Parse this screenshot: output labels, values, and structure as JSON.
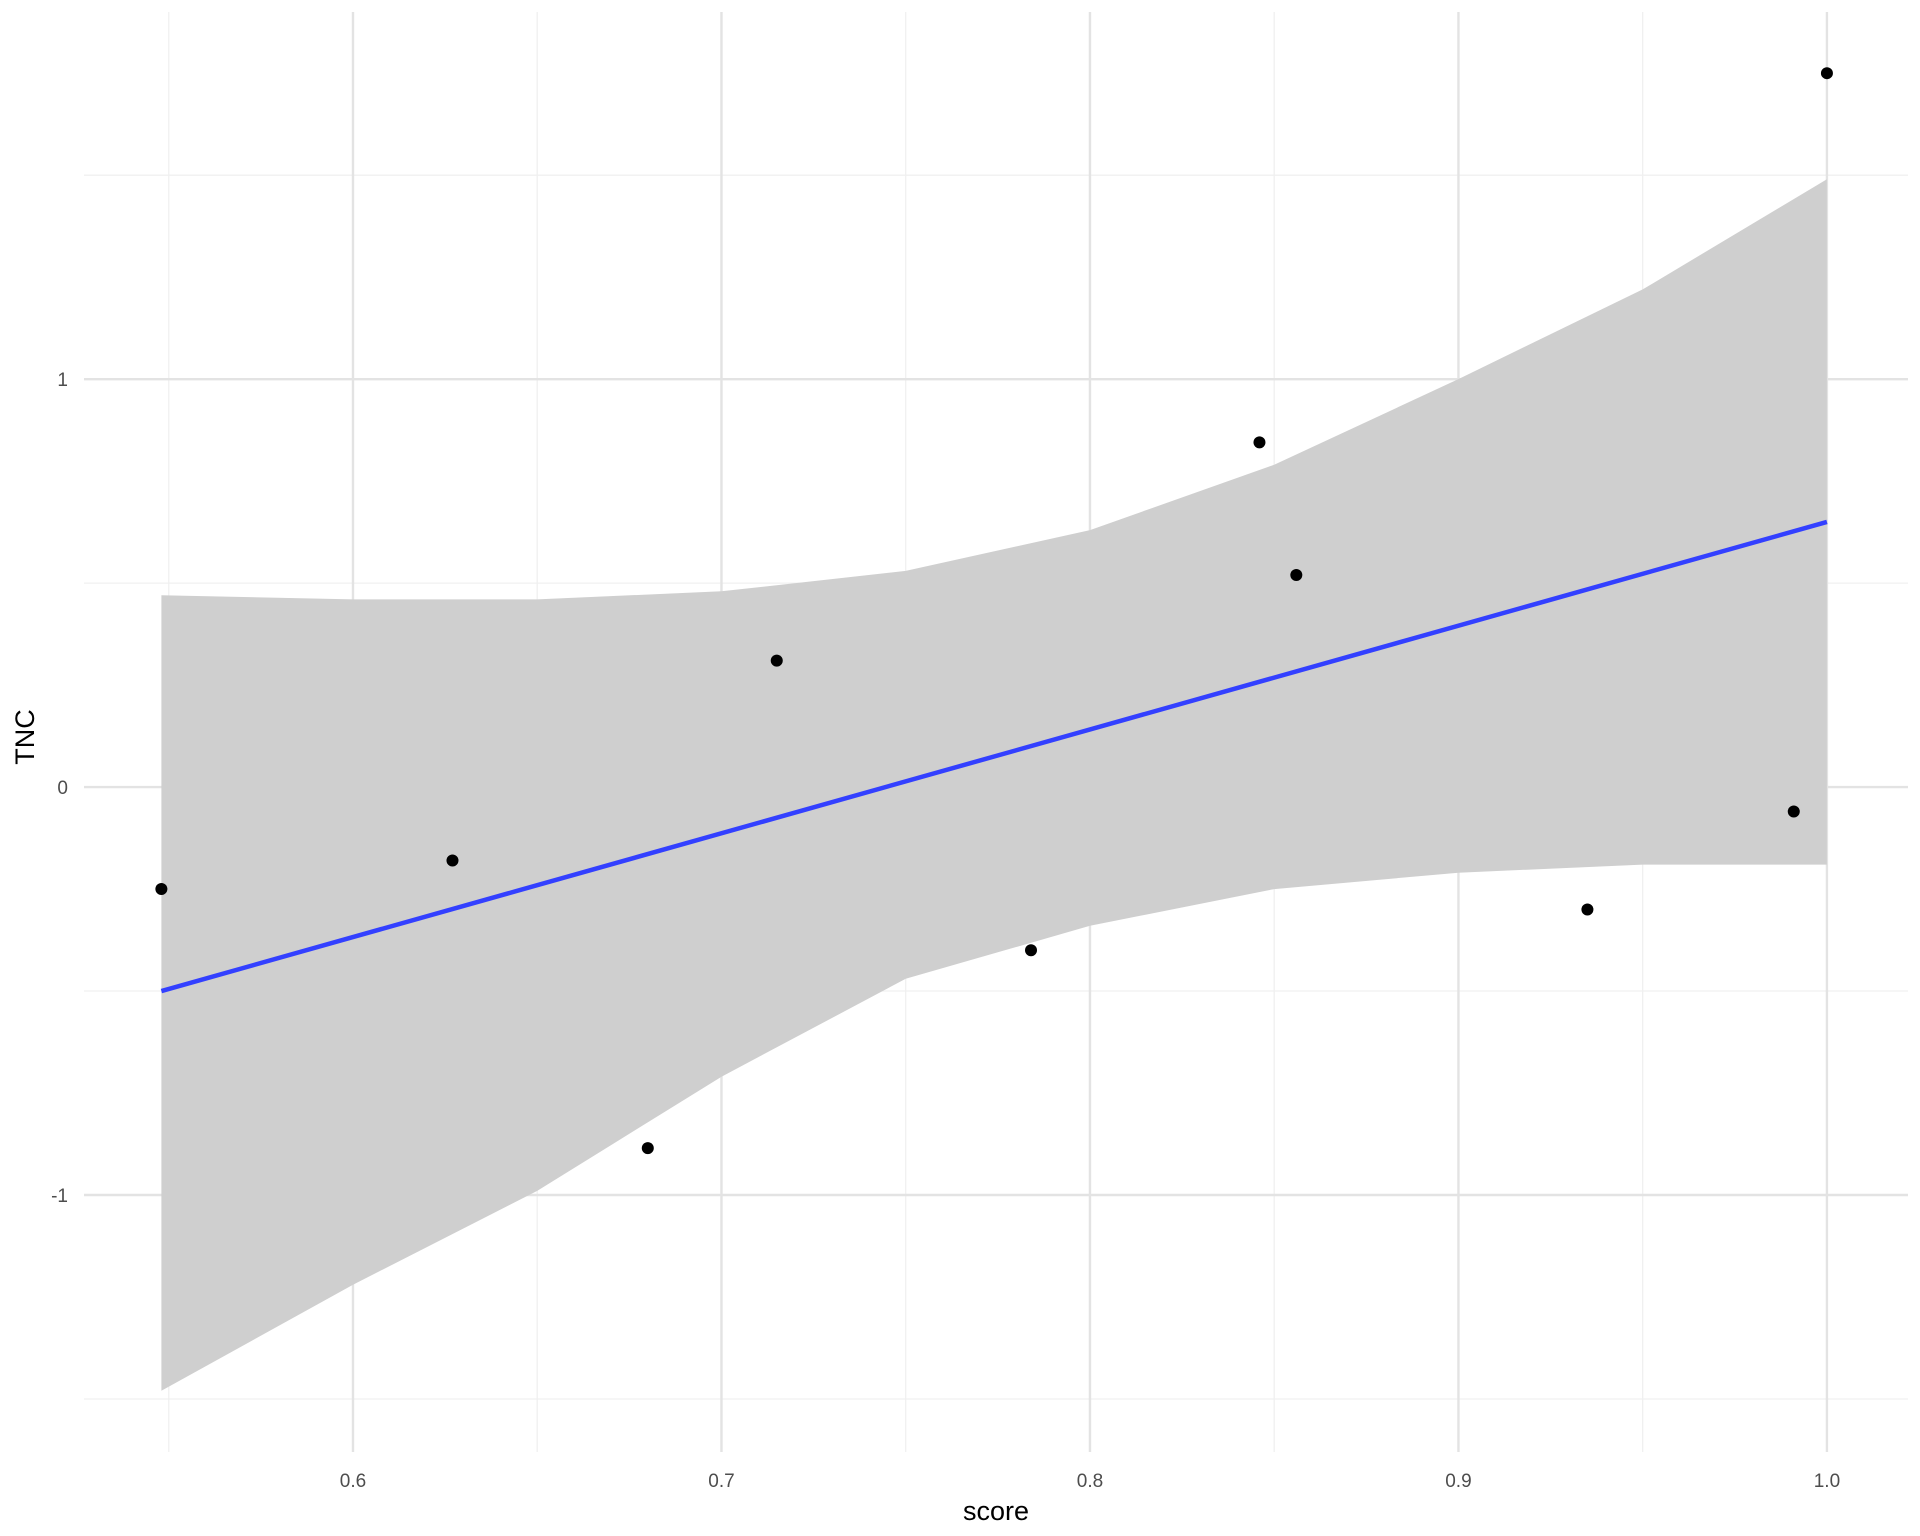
{
  "chart_data": {
    "type": "scatter",
    "xlabel": "score",
    "ylabel": "TNC",
    "xlim": [
      0.527,
      1.022
    ],
    "ylim": [
      -1.63,
      1.9
    ],
    "x_major_ticks": [
      0.6,
      0.7,
      0.8,
      0.9,
      1.0
    ],
    "x_tick_labels": [
      "0.6",
      "0.7",
      "0.8",
      "0.9",
      "1.0"
    ],
    "x_minor_ticks": [
      0.55,
      0.65,
      0.75,
      0.85,
      0.95
    ],
    "y_major_ticks": [
      -1,
      0,
      1
    ],
    "y_tick_labels": [
      "-1",
      "0",
      "1"
    ],
    "y_minor_ticks": [
      -1.5,
      -0.5,
      0.5,
      1.5
    ],
    "grid": true,
    "points": [
      {
        "x": 0.548,
        "y": -0.25
      },
      {
        "x": 0.627,
        "y": -0.18
      },
      {
        "x": 0.68,
        "y": -0.885
      },
      {
        "x": 0.715,
        "y": 0.31
      },
      {
        "x": 0.784,
        "y": -0.4
      },
      {
        "x": 0.846,
        "y": 0.845
      },
      {
        "x": 0.856,
        "y": 0.52
      },
      {
        "x": 0.935,
        "y": -0.3
      },
      {
        "x": 0.991,
        "y": -0.06
      },
      {
        "x": 1.0,
        "y": 1.75
      }
    ],
    "fit_line": {
      "x": [
        0.548,
        1.0
      ],
      "y": [
        -0.5,
        0.65
      ]
    },
    "confidence_band": {
      "x": [
        0.548,
        0.6,
        0.65,
        0.7,
        0.75,
        0.8,
        0.85,
        0.9,
        0.95,
        1.0
      ],
      "upper": [
        0.47,
        0.46,
        0.46,
        0.48,
        0.53,
        0.63,
        0.79,
        1.0,
        1.22,
        1.49
      ],
      "lower": [
        -1.48,
        -1.22,
        -0.99,
        -0.71,
        -0.47,
        -0.34,
        -0.25,
        -0.21,
        -0.19,
        -0.19
      ]
    },
    "colors": {
      "point": "#000000",
      "fit_line": "#3340ff",
      "band": "#cfcfcf",
      "grid_major": "#e3e3e3",
      "grid_minor": "#f0f0f0",
      "tick_text": "#4d4d4d"
    }
  }
}
